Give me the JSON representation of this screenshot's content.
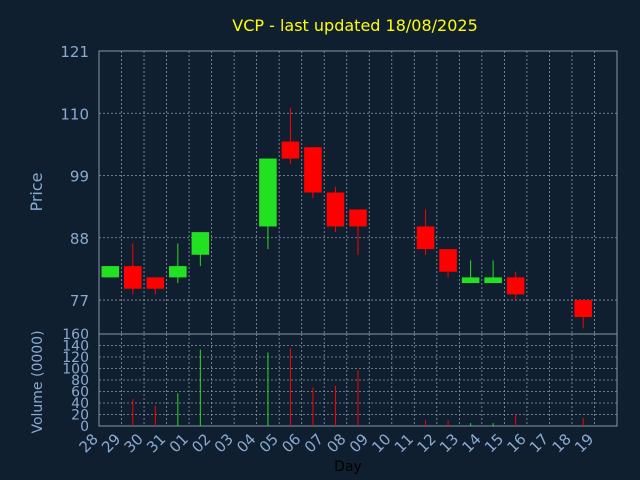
{
  "colors": {
    "background": "#0f1f30",
    "plot_background": "#0f1f30",
    "grid": "#8a97a6",
    "title": "#ffff00",
    "axis_text": "#8aaad0",
    "up": "#22e022",
    "down": "#ff0000"
  },
  "chart_data": {
    "type": "candlestick",
    "title": "VCP - last updated 18/08/2025",
    "xlabel": "Day",
    "price_panel": {
      "ylabel": "Price",
      "ylim": [
        71,
        121
      ],
      "yticks": [
        77,
        88,
        99,
        110,
        121
      ],
      "grid": true
    },
    "volume_panel": {
      "ylabel": "Volume (0000)",
      "ylim": [
        0,
        160
      ],
      "yticks": [
        0,
        20,
        40,
        60,
        80,
        100,
        120,
        140,
        160
      ],
      "grid": true
    },
    "days": [
      "28",
      "29",
      "30",
      "31",
      "01",
      "02",
      "03",
      "04",
      "05",
      "06",
      "07",
      "08",
      "09",
      "10",
      "11",
      "12",
      "13",
      "14",
      "15",
      "16",
      "17",
      "18",
      "19"
    ],
    "candles": [
      {
        "day": "28",
        "open": 81,
        "high": 83,
        "low": 81,
        "close": 83,
        "volume": 0
      },
      {
        "day": "29",
        "open": 83,
        "high": 87,
        "low": 78,
        "close": 79,
        "volume": 47
      },
      {
        "day": "30",
        "open": 81,
        "high": 81,
        "low": 78,
        "close": 79,
        "volume": 35
      },
      {
        "day": "31",
        "open": 81,
        "high": 87,
        "low": 80,
        "close": 83,
        "volume": 57
      },
      {
        "day": "01",
        "open": 85,
        "high": 89,
        "low": 83,
        "close": 89,
        "volume": 133
      },
      {
        "day": "04",
        "open": 90,
        "high": 102,
        "low": 86,
        "close": 102,
        "volume": 128
      },
      {
        "day": "05",
        "open": 105,
        "high": 111,
        "low": 101,
        "close": 102,
        "volume": 135
      },
      {
        "day": "06",
        "open": 104,
        "high": 104,
        "low": 95,
        "close": 96,
        "volume": 67
      },
      {
        "day": "07",
        "open": 96,
        "high": 97,
        "low": 89,
        "close": 90,
        "volume": 70
      },
      {
        "day": "08",
        "open": 93,
        "high": 93,
        "low": 85,
        "close": 90,
        "volume": 97
      },
      {
        "day": "11",
        "open": 90,
        "high": 93,
        "low": 85,
        "close": 86,
        "volume": 10
      },
      {
        "day": "12",
        "open": 86,
        "high": 86,
        "low": 81,
        "close": 82,
        "volume": 10
      },
      {
        "day": "13",
        "open": 80,
        "high": 84,
        "low": 80,
        "close": 81,
        "volume": 5
      },
      {
        "day": "14",
        "open": 80,
        "high": 84,
        "low": 80,
        "close": 81,
        "volume": 5
      },
      {
        "day": "15",
        "open": 81,
        "high": 82,
        "low": 77,
        "close": 78,
        "volume": 20
      },
      {
        "day": "18",
        "open": 77,
        "high": 77,
        "low": 72,
        "close": 74,
        "volume": 14
      }
    ]
  }
}
